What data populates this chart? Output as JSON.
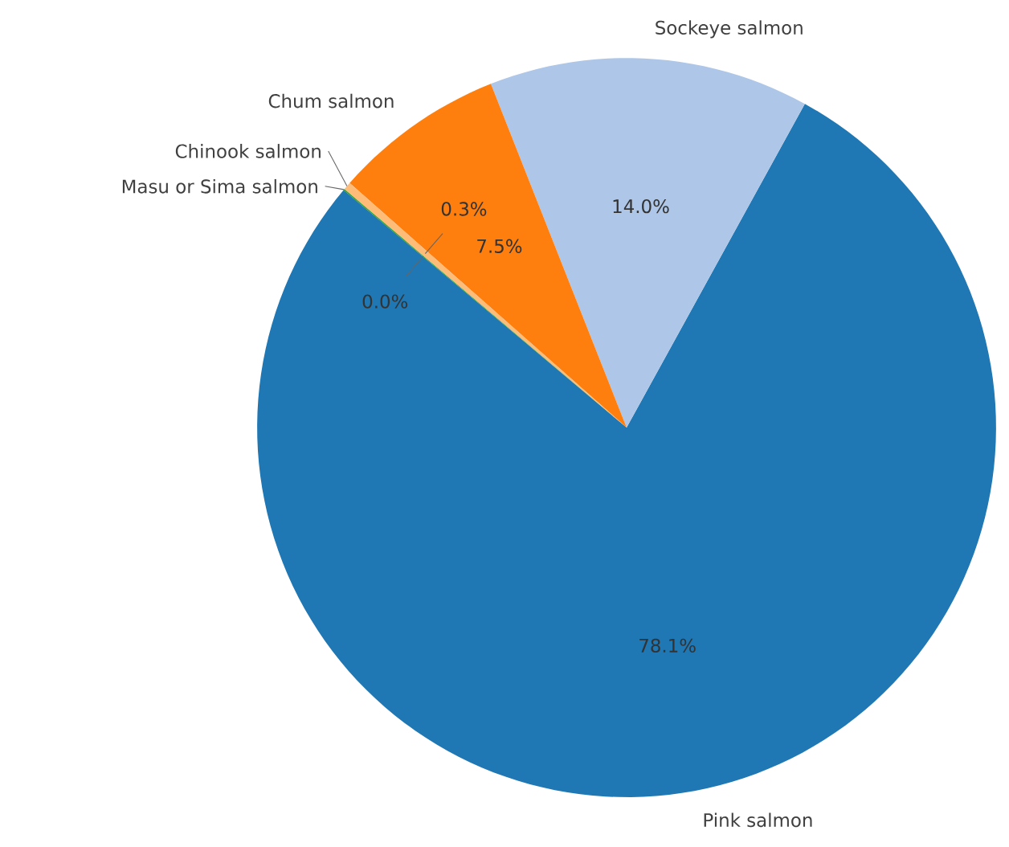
{
  "chart_data": {
    "type": "pie",
    "categories": [
      "Pink salmon",
      "Sockeye salmon",
      "Chum salmon",
      "Chinook salmon",
      "Masu or Sima salmon"
    ],
    "values": [
      78.1,
      14.0,
      7.5,
      0.35,
      0.05
    ],
    "colors": [
      "#1f77b4",
      "#aec7e8",
      "#ff7f0e",
      "#ffbb78",
      "#2ca02c"
    ],
    "value_labels": [
      "78.1%",
      "14.0%",
      "7.5%",
      "0.3%",
      "0.0%"
    ]
  }
}
